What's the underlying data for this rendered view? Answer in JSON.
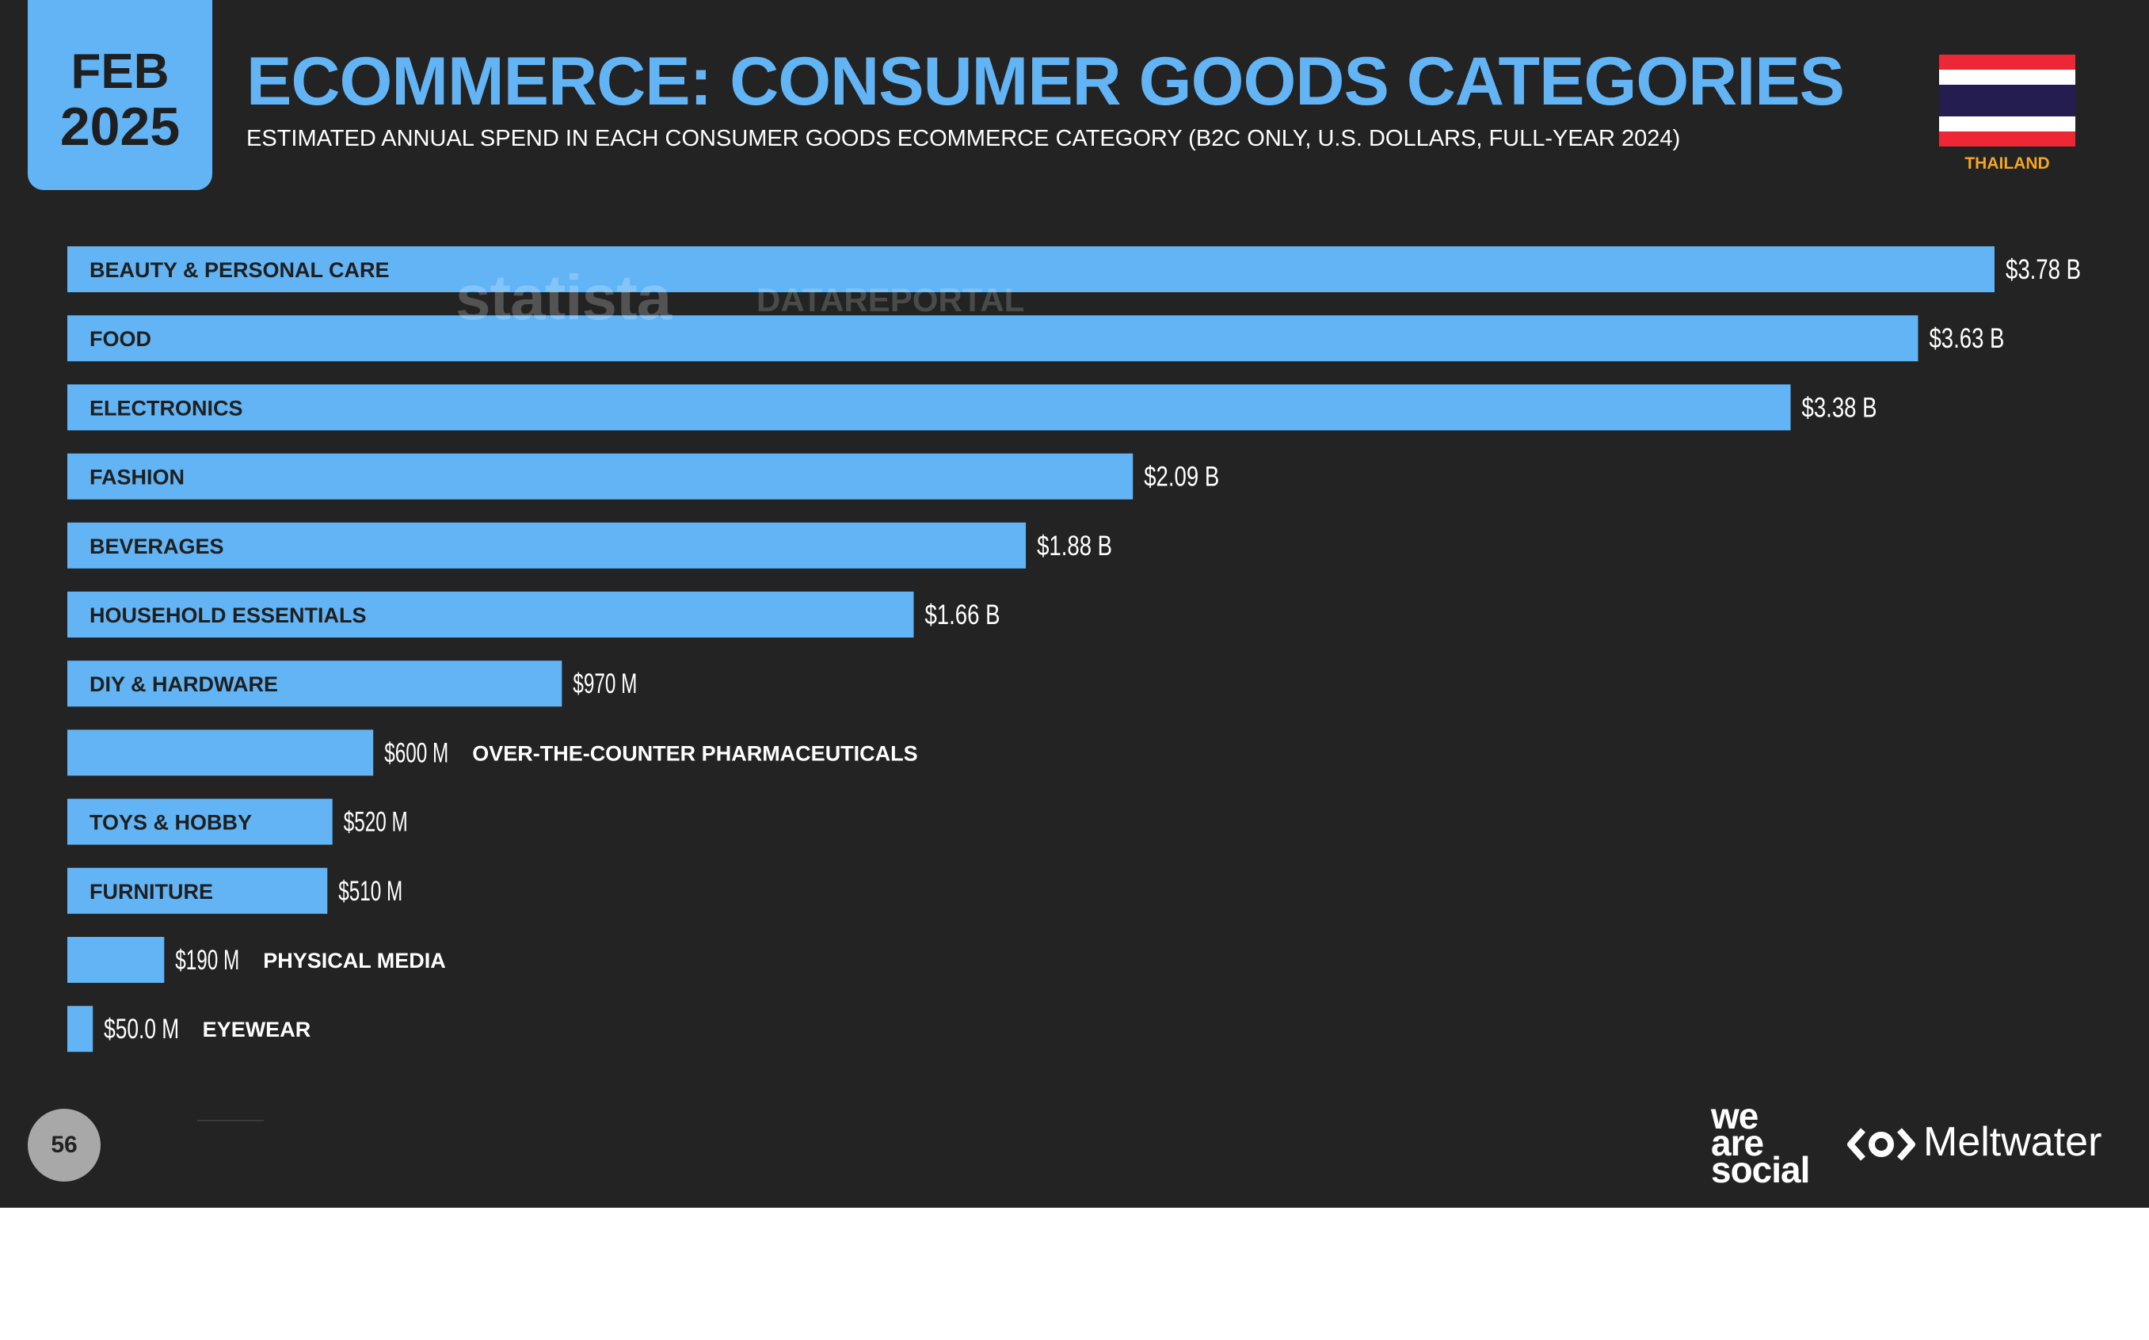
{
  "badge": {
    "month": "FEB",
    "year": "2025"
  },
  "header": {
    "title": "ECOMMERCE: CONSUMER GOODS CATEGORIES",
    "subtitle": "ESTIMATED ANNUAL SPEND IN EACH CONSUMER GOODS ECOMMERCE CATEGORY (B2C ONLY, U.S. DOLLARS, FULL-YEAR 2024)"
  },
  "flag": {
    "country": "THAILAND",
    "label_color": "#f5a623"
  },
  "watermarks": {
    "statista": "statista",
    "datareportal": "DATAREPORTAL"
  },
  "colors": {
    "background": "#232323",
    "bar": "#62b4f5",
    "accent": "#62b4f5",
    "label_inside": "#1f1f1f",
    "label_outside": "#ffffff"
  },
  "chart_data": {
    "type": "bar",
    "orientation": "horizontal",
    "categories": [
      "BEAUTY & PERSONAL CARE",
      "FOOD",
      "ELECTRONICS",
      "FASHION",
      "BEVERAGES",
      "HOUSEHOLD ESSENTIALS",
      "DIY & HARDWARE",
      "OVER-THE-COUNTER PHARMACEUTICALS",
      "TOYS & HOBBY",
      "FURNITURE",
      "PHYSICAL MEDIA",
      "EYEWEAR"
    ],
    "values": [
      3780,
      3630,
      3380,
      2090,
      1880,
      1660,
      970,
      600,
      520,
      510,
      190,
      50
    ],
    "value_labels": [
      "$3.78 B",
      "$3.63 B",
      "$3.38 B",
      "$2.09 B",
      "$1.88 B",
      "$1.66 B",
      "$970 M",
      "$600 M",
      "$520 M",
      "$510 M",
      "$190 M",
      "$50.0 M"
    ],
    "label_inside": [
      true,
      true,
      true,
      true,
      true,
      true,
      true,
      false,
      true,
      true,
      false,
      false
    ],
    "unit": "millions of U.S. dollars",
    "xlim": [
      0,
      3780
    ],
    "grid": false,
    "legend": "none"
  },
  "footer": {
    "page_number": "56",
    "logo_left": [
      "we",
      "are",
      "social"
    ],
    "logo_right": "Meltwater"
  }
}
